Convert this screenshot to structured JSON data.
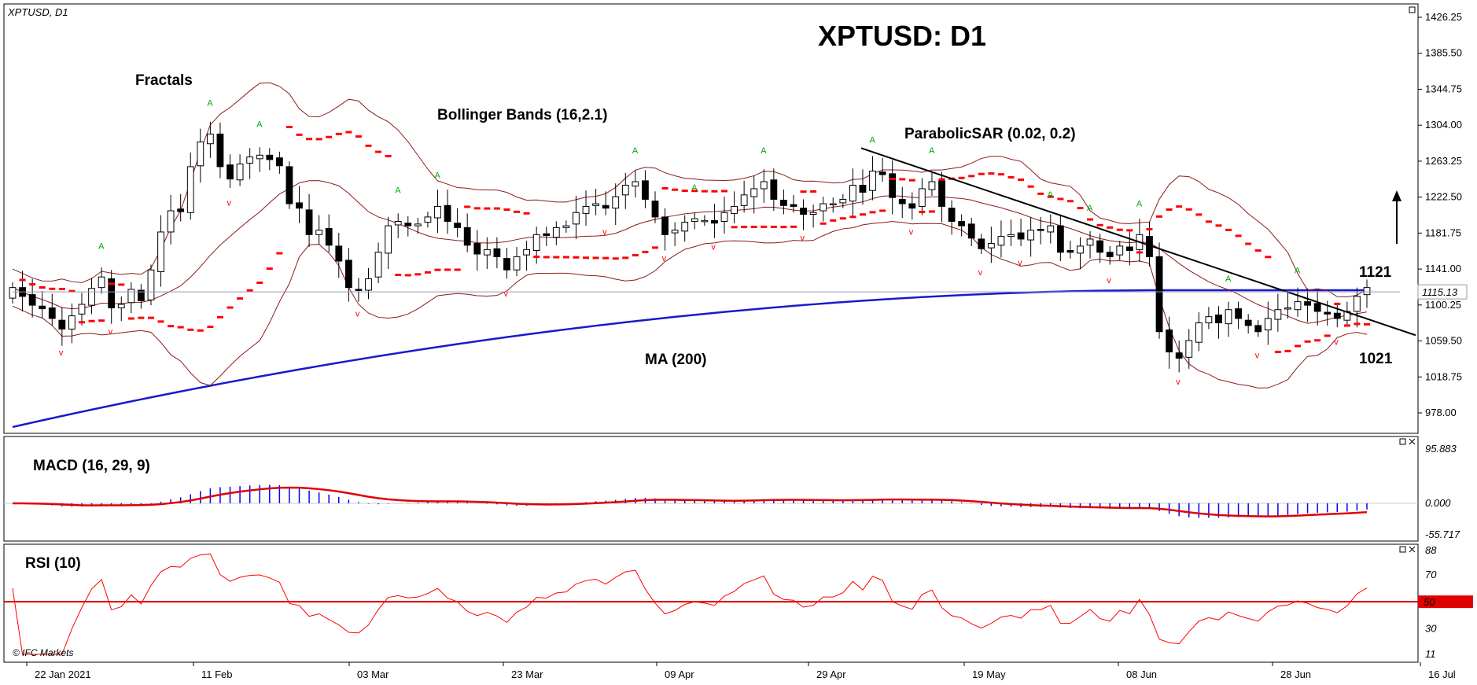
{
  "header": {
    "symbol_timeframe": "XPTUSD, D1",
    "big_title": "XPTUSD: D1",
    "copyright": "© IFC Markets"
  },
  "annotations": {
    "fractals": "Fractals",
    "bollinger": "Bollinger Bands (16,2.1)",
    "parabolic": "ParabolicSAR (0.02, 0.2)",
    "ma": "MA (200)",
    "level_up": "1121",
    "level_down": "1021",
    "current_price": "1115.13"
  },
  "colors": {
    "bg": "#ffffff",
    "candle_up": "#ffffff",
    "candle_down": "#000000",
    "bollinger": "#8b1a1a",
    "ma": "#1a1acc",
    "sar": "#ff0000",
    "fractal_up": "#00aa00",
    "fractal_down": "#ff0000",
    "trendline": "#000000",
    "macd_hist": "#0000ff",
    "macd_signal": "#e00000",
    "rsi_line": "#ff0000",
    "rsi_level": "#e00000"
  },
  "chart_data": [
    {
      "type": "candlestick",
      "panel": "price",
      "y_ticks": [
        "1426.25",
        "1385.50",
        "1344.75",
        "1304.00",
        "1263.25",
        "1222.50",
        "1181.75",
        "1141.00",
        "1100.25",
        "1059.50",
        "1018.75",
        "978.00"
      ],
      "ylim": [
        978.0,
        1426.25
      ],
      "x_ticks": [
        "22 Jan 2021",
        "11 Feb",
        "03 Mar",
        "23 Mar",
        "09 Apr",
        "29 Apr",
        "19 May",
        "08 Jun",
        "28 Jun",
        "16 Jul"
      ],
      "close_estimates": [
        1120,
        1110,
        1100,
        1096,
        1085,
        1073,
        1088,
        1101,
        1119,
        1132,
        1097,
        1101,
        1118,
        1105,
        1140,
        1183,
        1207,
        1206,
        1257,
        1285,
        1294,
        1257,
        1243,
        1260,
        1268,
        1270,
        1265,
        1258,
        1215,
        1210,
        1180,
        1185,
        1168,
        1150,
        1120,
        1117,
        1130,
        1160,
        1190,
        1195,
        1190,
        1192,
        1200,
        1212,
        1195,
        1188,
        1168,
        1158,
        1163,
        1155,
        1140,
        1155,
        1163,
        1180,
        1179,
        1188,
        1190,
        1205,
        1212,
        1215,
        1210,
        1223,
        1236,
        1240,
        1220,
        1200,
        1180,
        1185,
        1194,
        1198,
        1196,
        1193,
        1205,
        1212,
        1225,
        1232,
        1240,
        1220,
        1213,
        1212,
        1203,
        1205,
        1215,
        1215,
        1220,
        1236,
        1228,
        1252,
        1248,
        1222,
        1215,
        1210,
        1232,
        1240,
        1212,
        1195,
        1190,
        1176,
        1164,
        1170,
        1178,
        1180,
        1175,
        1185,
        1185,
        1190,
        1160,
        1160,
        1167,
        1175,
        1160,
        1155,
        1167,
        1162,
        1180,
        1155,
        1070,
        1047,
        1040,
        1060,
        1080,
        1087,
        1080,
        1095,
        1085,
        1077,
        1070,
        1085,
        1095,
        1097,
        1104,
        1100,
        1093,
        1090,
        1085,
        1093,
        1110,
        1120
      ],
      "ma200_line": "rising from ~962 to ~1117, flat after mid June",
      "bollinger_period": "16,2.1",
      "parabolic_sar": "0.02, 0.2",
      "trendline": "descending from ~1278 (early May) to ~1075 (mid July)"
    },
    {
      "type": "bar",
      "panel": "MACD",
      "name": "MACD (16, 29, 9)",
      "y_ticks": [
        "95.883",
        "0.000",
        "-55.717"
      ],
      "ylim": [
        -55.717,
        95.883
      ]
    },
    {
      "type": "line",
      "panel": "RSI",
      "name": "RSI (10)",
      "y_ticks": [
        "88",
        "70",
        "50",
        "30",
        "11"
      ],
      "ylim": [
        11,
        88
      ],
      "level": 50,
      "level_label": "50"
    }
  ]
}
